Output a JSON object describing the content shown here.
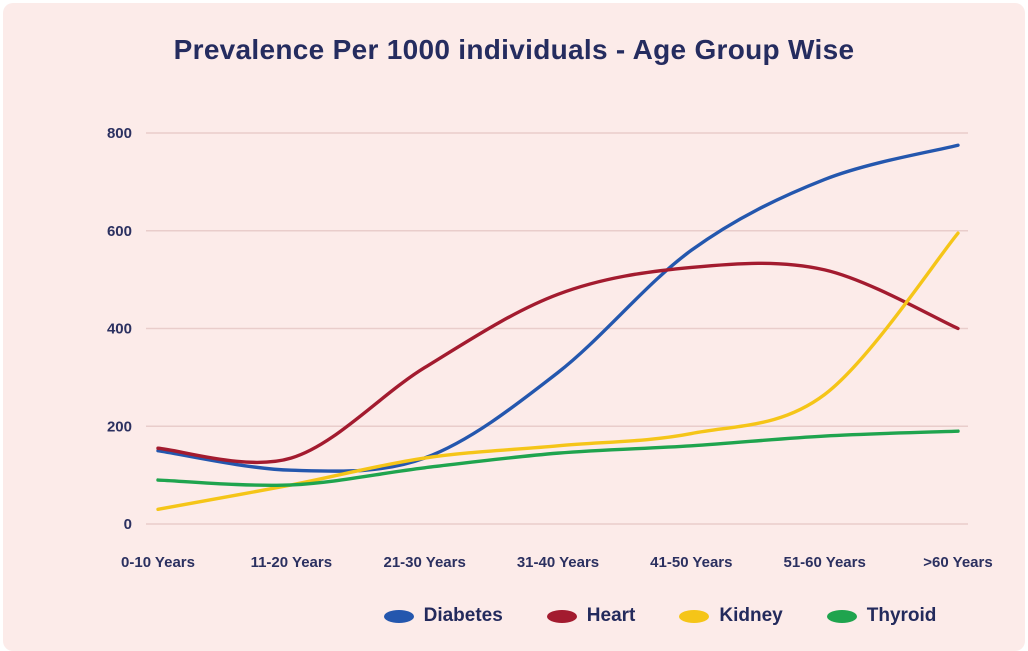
{
  "title": "Prevalence Per 1000 individuals - Age Group Wise",
  "colors": {
    "background": "#fcebe9",
    "title_text": "#252c5f",
    "axis_text": "#2b3060",
    "gridline": "#e9cdcb"
  },
  "chart_data": {
    "type": "line",
    "title": "Prevalence Per 1000 individuals - Age Group Wise",
    "xlabel": "",
    "ylabel": "",
    "categories": [
      "0-10 Years",
      "11-20 Years",
      "21-30 Years",
      "31-40 Years",
      "41-50 Years",
      "51-60 Years",
      ">60 Years"
    ],
    "series": [
      {
        "name": "Diabetes",
        "color": "#2457ae",
        "values": [
          150,
          110,
          135,
          310,
          560,
          705,
          775
        ]
      },
      {
        "name": "Heart",
        "color": "#a31b2f",
        "values": [
          155,
          135,
          320,
          470,
          525,
          520,
          400
        ]
      },
      {
        "name": "Kidney",
        "color": "#f5c518",
        "values": [
          30,
          80,
          135,
          160,
          185,
          265,
          595
        ]
      },
      {
        "name": "Thyroid",
        "color": "#1fa44e",
        "values": [
          90,
          80,
          115,
          145,
          160,
          180,
          190
        ]
      }
    ],
    "ylim": [
      0,
      800
    ],
    "yticks": [
      0,
      200,
      400,
      600,
      800
    ],
    "grid": true,
    "legend_position": "bottom"
  }
}
